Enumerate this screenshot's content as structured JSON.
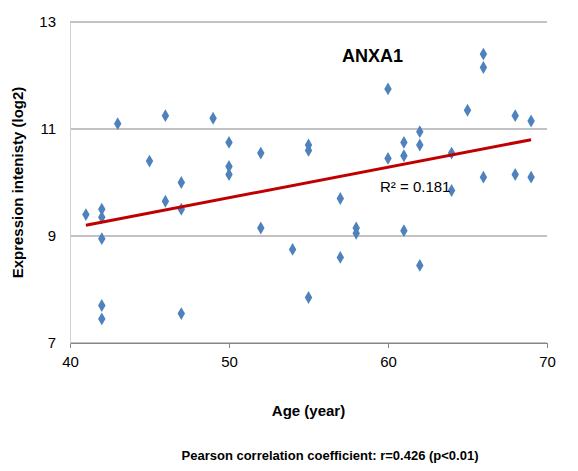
{
  "chart_data": {
    "type": "scatter",
    "title": "ANXA1",
    "x_label": "Age (year)",
    "y_label": "Expression intenisty (log2)",
    "annotations": [
      "R² = 0.181",
      "Pearson correlation coefficient: r=0.426 (p<0.01)"
    ],
    "xlim": [
      40,
      70
    ],
    "xticks": [
      40,
      50,
      60,
      70
    ],
    "ylim": [
      7,
      13
    ],
    "yticks": [
      7,
      9,
      11,
      13
    ],
    "grid": true,
    "series": [
      {
        "type": "scatter",
        "marker": "diamond",
        "color": "#4f81bd",
        "x": [
          41,
          42,
          42,
          42,
          42,
          42,
          43,
          45,
          46,
          46,
          47,
          47,
          47,
          49,
          50,
          50,
          50,
          52,
          52,
          54,
          55,
          55,
          55,
          57,
          57,
          58,
          58,
          60,
          60,
          61,
          61,
          61,
          62,
          62,
          62,
          64,
          64,
          65,
          66,
          66,
          66,
          68,
          68,
          69,
          69
        ],
        "values": [
          9.4,
          9.5,
          9.35,
          8.95,
          7.7,
          7.45,
          11.1,
          10.4,
          11.25,
          9.65,
          10.0,
          9.5,
          7.55,
          11.2,
          10.75,
          10.3,
          10.15,
          10.55,
          9.15,
          8.75,
          10.7,
          10.6,
          7.85,
          9.7,
          8.6,
          9.15,
          9.05,
          11.75,
          10.45,
          10.75,
          10.5,
          9.1,
          10.95,
          10.7,
          8.45,
          10.55,
          9.85,
          11.35,
          12.4,
          12.15,
          10.1,
          11.25,
          10.15,
          11.15,
          10.1
        ]
      },
      {
        "type": "line",
        "line_style": "solid",
        "color": "#c00000",
        "x": [
          41,
          69
        ],
        "values": [
          9.2,
          10.8
        ]
      }
    ]
  }
}
